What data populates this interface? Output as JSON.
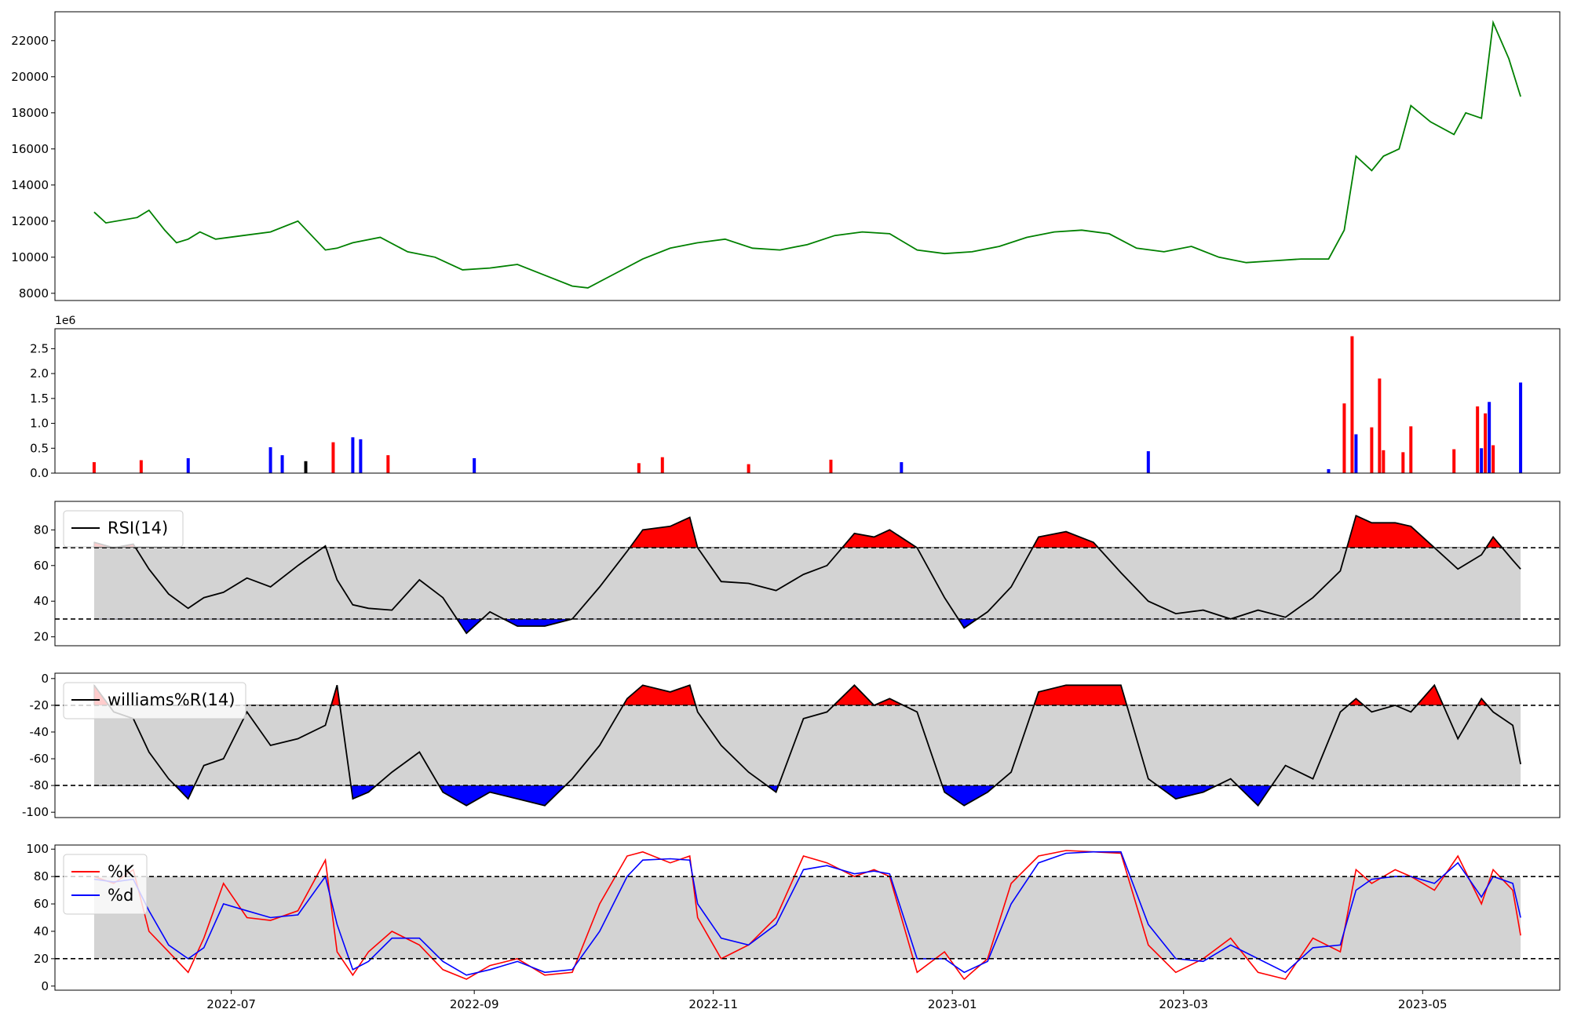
{
  "chart_data": [
    {
      "type": "line",
      "panel": "price",
      "title": "",
      "xlabel": "",
      "ylabel": "",
      "ylim": [
        7600,
        23600
      ],
      "yticks": [
        8000,
        10000,
        12000,
        14000,
        16000,
        18000,
        20000,
        22000
      ],
      "grid": false,
      "color": "#008000",
      "series": [
        {
          "x": [
            "2022-05-27",
            "2022-05-30",
            "2022-06-07",
            "2022-06-10",
            "2022-06-14",
            "2022-06-17",
            "2022-06-20",
            "2022-06-23",
            "2022-06-27",
            "2022-07-04",
            "2022-07-11",
            "2022-07-18",
            "2022-07-25",
            "2022-07-28",
            "2022-08-01",
            "2022-08-08",
            "2022-08-15",
            "2022-08-22",
            "2022-08-29",
            "2022-09-05",
            "2022-09-12",
            "2022-09-19",
            "2022-09-26",
            "2022-09-30",
            "2022-10-07",
            "2022-10-14",
            "2022-10-21",
            "2022-10-28",
            "2022-11-04",
            "2022-11-11",
            "2022-11-18",
            "2022-11-25",
            "2022-12-02",
            "2022-12-09",
            "2022-12-16",
            "2022-12-23",
            "2022-12-30",
            "2023-01-06",
            "2023-01-13",
            "2023-01-20",
            "2023-01-27",
            "2023-02-03",
            "2023-02-10",
            "2023-02-17",
            "2023-02-24",
            "2023-03-03",
            "2023-03-10",
            "2023-03-17",
            "2023-03-24",
            "2023-03-31",
            "2023-04-07",
            "2023-04-11",
            "2023-04-14",
            "2023-04-18",
            "2023-04-21",
            "2023-04-25",
            "2023-04-28",
            "2023-05-03",
            "2023-05-09",
            "2023-05-12",
            "2023-05-16",
            "2023-05-19",
            "2023-05-23",
            "2023-05-26"
          ],
          "y": [
            12500,
            11900,
            12200,
            12600,
            11500,
            10800,
            11000,
            11400,
            11000,
            11200,
            11400,
            12000,
            10400,
            10500,
            10800,
            11100,
            10300,
            10000,
            9300,
            9400,
            9600,
            9000,
            8400,
            8300,
            9100,
            9900,
            10500,
            10800,
            11000,
            10500,
            10400,
            10700,
            11200,
            11400,
            11300,
            10400,
            10200,
            10300,
            10600,
            11100,
            11400,
            11500,
            11300,
            10500,
            10300,
            10600,
            10000,
            9700,
            9800,
            9900,
            9900,
            11500,
            15600,
            14800,
            15600,
            16000,
            18400,
            17500,
            16800,
            18000,
            17700,
            23000,
            21000,
            18900
          ]
        }
      ]
    },
    {
      "type": "bar",
      "panel": "volume",
      "title": "",
      "xlabel": "",
      "ylabel": "",
      "offset_label": "1e6",
      "ylim": [
        0,
        2900000
      ],
      "yticks": [
        0,
        500000,
        1000000,
        1500000,
        2000000,
        2500000
      ],
      "ytick_labels": [
        "0.0",
        "0.5",
        "1.0",
        "1.5",
        "2.0",
        "2.5"
      ],
      "colors": {
        "up": "#ff0000",
        "down": "#0000ff",
        "flat": "#000000"
      },
      "x": [
        "2022-05-27",
        "2022-06-08",
        "2022-06-20",
        "2022-07-11",
        "2022-07-14",
        "2022-07-20",
        "2022-07-27",
        "2022-08-01",
        "2022-08-03",
        "2022-08-10",
        "2022-09-01",
        "2022-10-13",
        "2022-10-19",
        "2022-11-10",
        "2022-12-01",
        "2022-12-19",
        "2023-02-20",
        "2023-04-07",
        "2023-04-11",
        "2023-04-13",
        "2023-04-14",
        "2023-04-18",
        "2023-04-20",
        "2023-04-21",
        "2023-04-26",
        "2023-04-28",
        "2023-05-09",
        "2023-05-15",
        "2023-05-16",
        "2023-05-17",
        "2023-05-18",
        "2023-05-19",
        "2023-05-26"
      ],
      "values": [
        220000,
        260000,
        300000,
        520000,
        360000,
        240000,
        620000,
        720000,
        680000,
        360000,
        300000,
        200000,
        320000,
        180000,
        270000,
        220000,
        440000,
        80000,
        1400000,
        2750000,
        780000,
        920000,
        1900000,
        460000,
        420000,
        940000,
        480000,
        1340000,
        500000,
        1200000,
        1430000,
        560000,
        1820000
      ],
      "directions": [
        "up",
        "up",
        "down",
        "down",
        "down",
        "flat",
        "up",
        "down",
        "down",
        "up",
        "down",
        "up",
        "up",
        "up",
        "up",
        "down",
        "down",
        "down",
        "up",
        "up",
        "down",
        "up",
        "up",
        "red",
        "up",
        "up",
        "up",
        "up",
        "down",
        "up",
        "down",
        "up",
        "down"
      ]
    },
    {
      "type": "line",
      "panel": "rsi",
      "title": "",
      "xlabel": "",
      "ylabel": "",
      "legend": [
        "RSI(14)"
      ],
      "legend_position": "upper left",
      "ylim": [
        15,
        96
      ],
      "yticks": [
        20,
        40,
        60,
        80
      ],
      "upper_band": 70,
      "lower_band": 30,
      "series": [
        {
          "name": "RSI(14)",
          "x": [
            "2022-05-27",
            "2022-06-01",
            "2022-06-06",
            "2022-06-10",
            "2022-06-15",
            "2022-06-20",
            "2022-06-24",
            "2022-06-29",
            "2022-07-05",
            "2022-07-11",
            "2022-07-18",
            "2022-07-25",
            "2022-07-28",
            "2022-08-01",
            "2022-08-05",
            "2022-08-11",
            "2022-08-18",
            "2022-08-24",
            "2022-08-30",
            "2022-09-05",
            "2022-09-12",
            "2022-09-19",
            "2022-09-26",
            "2022-10-03",
            "2022-10-10",
            "2022-10-14",
            "2022-10-21",
            "2022-10-26",
            "2022-10-28",
            "2022-11-03",
            "2022-11-10",
            "2022-11-17",
            "2022-11-24",
            "2022-11-30",
            "2022-12-07",
            "2022-12-12",
            "2022-12-16",
            "2022-12-23",
            "2022-12-30",
            "2023-01-04",
            "2023-01-10",
            "2023-01-16",
            "2023-01-23",
            "2023-01-30",
            "2023-02-06",
            "2023-02-13",
            "2023-02-20",
            "2023-02-27",
            "2023-03-06",
            "2023-03-13",
            "2023-03-20",
            "2023-03-27",
            "2023-04-03",
            "2023-04-10",
            "2023-04-14",
            "2023-04-18",
            "2023-04-24",
            "2023-04-28",
            "2023-05-04",
            "2023-05-10",
            "2023-05-16",
            "2023-05-19",
            "2023-05-24",
            "2023-05-26"
          ],
          "values": [
            73,
            70,
            72,
            58,
            44,
            36,
            42,
            45,
            53,
            48,
            60,
            71,
            52,
            38,
            36,
            35,
            52,
            42,
            22,
            34,
            26,
            26,
            30,
            48,
            68,
            80,
            82,
            87,
            70,
            51,
            50,
            46,
            55,
            60,
            78,
            76,
            80,
            70,
            42,
            25,
            34,
            48,
            76,
            79,
            73,
            56,
            40,
            33,
            35,
            30,
            35,
            31,
            42,
            57,
            88,
            84,
            84,
            82,
            70,
            58,
            66,
            76,
            63,
            58
          ]
        }
      ]
    },
    {
      "type": "line",
      "panel": "williams",
      "title": "",
      "xlabel": "",
      "ylabel": "",
      "legend": [
        "williams%R(14)"
      ],
      "legend_position": "upper left",
      "ylim": [
        -104,
        4
      ],
      "yticks": [
        -100,
        -80,
        -60,
        -40,
        -20,
        0
      ],
      "upper_band": -20,
      "lower_band": -80,
      "series": [
        {
          "name": "williams%R(14)",
          "x": [
            "2022-05-27",
            "2022-06-01",
            "2022-06-06",
            "2022-06-10",
            "2022-06-15",
            "2022-06-20",
            "2022-06-24",
            "2022-06-29",
            "2022-07-05",
            "2022-07-11",
            "2022-07-18",
            "2022-07-25",
            "2022-07-28",
            "2022-08-01",
            "2022-08-05",
            "2022-08-11",
            "2022-08-18",
            "2022-08-24",
            "2022-08-30",
            "2022-09-05",
            "2022-09-12",
            "2022-09-19",
            "2022-09-26",
            "2022-10-03",
            "2022-10-10",
            "2022-10-14",
            "2022-10-21",
            "2022-10-26",
            "2022-10-28",
            "2022-11-03",
            "2022-11-10",
            "2022-11-17",
            "2022-11-24",
            "2022-11-30",
            "2022-12-07",
            "2022-12-12",
            "2022-12-16",
            "2022-12-23",
            "2022-12-30",
            "2023-01-04",
            "2023-01-10",
            "2023-01-16",
            "2023-01-23",
            "2023-01-30",
            "2023-02-06",
            "2023-02-13",
            "2023-02-20",
            "2023-02-27",
            "2023-03-06",
            "2023-03-13",
            "2023-03-20",
            "2023-03-27",
            "2023-04-03",
            "2023-04-10",
            "2023-04-14",
            "2023-04-18",
            "2023-04-24",
            "2023-04-28",
            "2023-05-04",
            "2023-05-10",
            "2023-05-16",
            "2023-05-19",
            "2023-05-24",
            "2023-05-26"
          ],
          "values": [
            -5,
            -25,
            -30,
            -55,
            -75,
            -90,
            -65,
            -60,
            -25,
            -50,
            -45,
            -35,
            -5,
            -90,
            -85,
            -70,
            -55,
            -85,
            -95,
            -85,
            -90,
            -95,
            -75,
            -50,
            -15,
            -5,
            -10,
            -5,
            -25,
            -50,
            -70,
            -85,
            -30,
            -25,
            -5,
            -20,
            -15,
            -25,
            -85,
            -95,
            -85,
            -70,
            -10,
            -5,
            -5,
            -5,
            -75,
            -90,
            -85,
            -75,
            -95,
            -65,
            -75,
            -25,
            -15,
            -25,
            -20,
            -25,
            -5,
            -45,
            -15,
            -25,
            -35,
            -64
          ]
        }
      ]
    },
    {
      "type": "line",
      "panel": "stochastic",
      "title": "",
      "xlabel": "",
      "ylabel": "",
      "legend": [
        "%K",
        "%d"
      ],
      "legend_position": "upper left",
      "ylim": [
        -3,
        103
      ],
      "yticks": [
        0,
        20,
        40,
        60,
        80,
        100
      ],
      "upper_band": 80,
      "lower_band": 20,
      "x_ticks": [
        "2022-07",
        "2022-09",
        "2022-11",
        "2023-01",
        "2023-03",
        "2023-05"
      ],
      "series": [
        {
          "name": "%K",
          "color": "#ff0000",
          "x": [
            "2022-05-27",
            "2022-06-01",
            "2022-06-06",
            "2022-06-10",
            "2022-06-15",
            "2022-06-20",
            "2022-06-24",
            "2022-06-29",
            "2022-07-05",
            "2022-07-11",
            "2022-07-18",
            "2022-07-25",
            "2022-07-28",
            "2022-08-01",
            "2022-08-05",
            "2022-08-11",
            "2022-08-18",
            "2022-08-24",
            "2022-08-30",
            "2022-09-05",
            "2022-09-12",
            "2022-09-19",
            "2022-09-26",
            "2022-10-03",
            "2022-10-10",
            "2022-10-14",
            "2022-10-21",
            "2022-10-26",
            "2022-10-28",
            "2022-11-03",
            "2022-11-10",
            "2022-11-17",
            "2022-11-24",
            "2022-11-30",
            "2022-12-07",
            "2022-12-12",
            "2022-12-16",
            "2022-12-23",
            "2022-12-30",
            "2023-01-04",
            "2023-01-10",
            "2023-01-16",
            "2023-01-23",
            "2023-01-30",
            "2023-02-06",
            "2023-02-13",
            "2023-02-20",
            "2023-02-27",
            "2023-03-06",
            "2023-03-13",
            "2023-03-20",
            "2023-03-27",
            "2023-04-03",
            "2023-04-10",
            "2023-04-14",
            "2023-04-18",
            "2023-04-24",
            "2023-04-28",
            "2023-05-04",
            "2023-05-10",
            "2023-05-16",
            "2023-05-19",
            "2023-05-24",
            "2023-05-26"
          ],
          "values": [
            80,
            75,
            85,
            40,
            25,
            10,
            35,
            75,
            50,
            48,
            55,
            92,
            25,
            8,
            25,
            40,
            30,
            12,
            5,
            15,
            20,
            8,
            10,
            60,
            95,
            98,
            90,
            95,
            50,
            20,
            30,
            50,
            95,
            90,
            80,
            85,
            80,
            10,
            25,
            5,
            20,
            75,
            95,
            99,
            98,
            97,
            30,
            10,
            20,
            35,
            10,
            5,
            35,
            25,
            85,
            75,
            85,
            80,
            70,
            95,
            60,
            85,
            70,
            37
          ]
        },
        {
          "name": "%d",
          "color": "#0000ff",
          "x": [
            "2022-05-27",
            "2022-06-01",
            "2022-06-06",
            "2022-06-10",
            "2022-06-15",
            "2022-06-20",
            "2022-06-24",
            "2022-06-29",
            "2022-07-05",
            "2022-07-11",
            "2022-07-18",
            "2022-07-25",
            "2022-07-28",
            "2022-08-01",
            "2022-08-05",
            "2022-08-11",
            "2022-08-18",
            "2022-08-24",
            "2022-08-30",
            "2022-09-05",
            "2022-09-12",
            "2022-09-19",
            "2022-09-26",
            "2022-10-03",
            "2022-10-10",
            "2022-10-14",
            "2022-10-21",
            "2022-10-26",
            "2022-10-28",
            "2022-11-03",
            "2022-11-10",
            "2022-11-17",
            "2022-11-24",
            "2022-11-30",
            "2022-12-07",
            "2022-12-12",
            "2022-12-16",
            "2022-12-23",
            "2022-12-30",
            "2023-01-04",
            "2023-01-10",
            "2023-01-16",
            "2023-01-23",
            "2023-01-30",
            "2023-02-06",
            "2023-02-13",
            "2023-02-20",
            "2023-02-27",
            "2023-03-06",
            "2023-03-13",
            "2023-03-20",
            "2023-03-27",
            "2023-04-03",
            "2023-04-10",
            "2023-04-14",
            "2023-04-18",
            "2023-04-24",
            "2023-04-28",
            "2023-05-04",
            "2023-05-10",
            "2023-05-16",
            "2023-05-19",
            "2023-05-24",
            "2023-05-26"
          ],
          "values": [
            78,
            76,
            78,
            55,
            30,
            20,
            28,
            60,
            55,
            50,
            52,
            80,
            45,
            12,
            18,
            35,
            35,
            18,
            8,
            12,
            18,
            10,
            12,
            40,
            80,
            92,
            93,
            92,
            60,
            35,
            30,
            45,
            85,
            88,
            82,
            84,
            82,
            20,
            20,
            10,
            18,
            60,
            90,
            97,
            98,
            98,
            45,
            20,
            18,
            30,
            20,
            10,
            28,
            30,
            70,
            78,
            80,
            80,
            75,
            90,
            65,
            80,
            75,
            50
          ]
        }
      ]
    }
  ]
}
